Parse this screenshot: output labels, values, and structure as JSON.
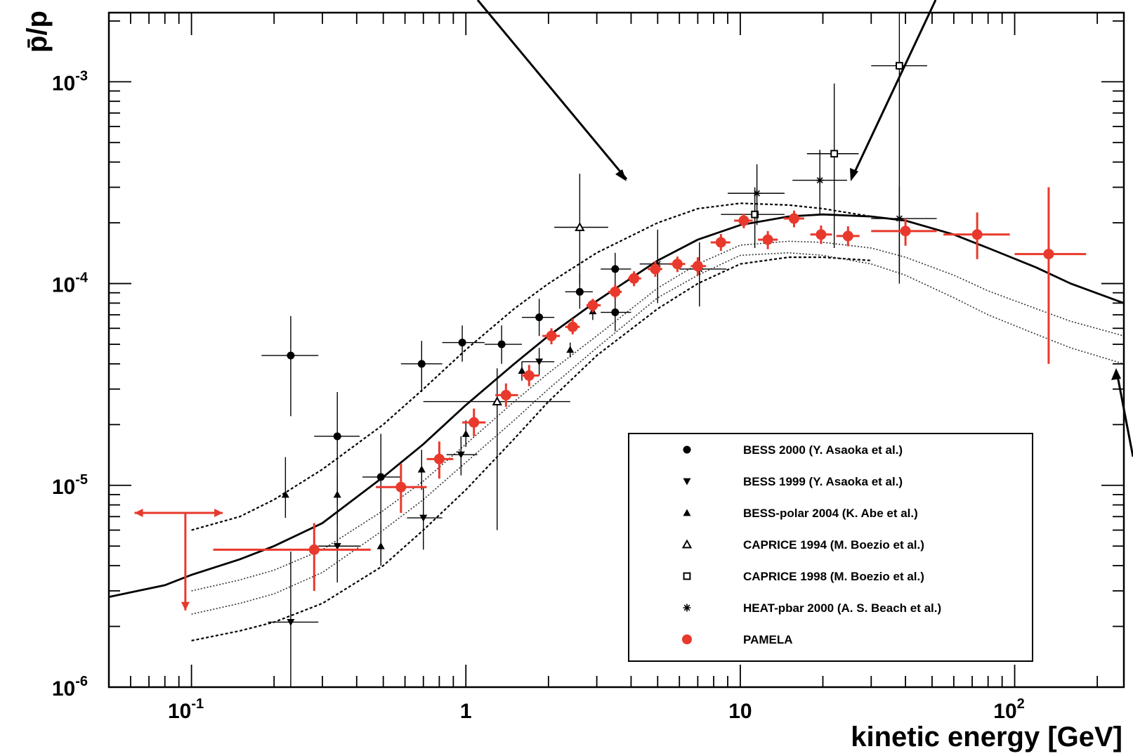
{
  "chart_data": {
    "type": "scatter",
    "xlabel": "kinetic energy [GeV]",
    "ylabel": "p̄/p",
    "xscale": "log",
    "yscale": "log",
    "xlim": [
      0.05,
      250
    ],
    "ylim": [
      1e-06,
      0.0022
    ],
    "x_tick_labels": [
      {
        "value": 0.1,
        "base": "10",
        "exp": "-1"
      },
      {
        "value": 1,
        "base": "1",
        "exp": ""
      },
      {
        "value": 10,
        "base": "10",
        "exp": ""
      },
      {
        "value": 100,
        "base": "10",
        "exp": "2"
      }
    ],
    "y_tick_labels": [
      {
        "value": 0.001,
        "base": "10",
        "exp": "-3"
      },
      {
        "value": 0.0001,
        "base": "10",
        "exp": "-4"
      },
      {
        "value": 1e-05,
        "base": "10",
        "exp": "-5"
      },
      {
        "value": 1e-06,
        "base": "10",
        "exp": "-6"
      }
    ],
    "legend_position": "bottom-right",
    "series": [
      {
        "name": "BESS 2000 (Y. Asaoka et al.)",
        "marker": "circle-filled",
        "color": "#000000",
        "points": [
          {
            "x": 0.23,
            "y": 4.4e-05,
            "xlo": 0.18,
            "xhi": 0.29,
            "ylo": 2.2e-05,
            "yhi": 6.9e-05
          },
          {
            "x": 0.34,
            "y": 1.75e-05,
            "xlo": 0.28,
            "xhi": 0.41,
            "ylo": 8e-06,
            "yhi": 2.9e-05
          },
          {
            "x": 0.49,
            "y": 1.1e-05,
            "xlo": 0.42,
            "xhi": 0.58,
            "ylo": 4.2e-06,
            "yhi": 1.8e-05
          },
          {
            "x": 0.69,
            "y": 4e-05,
            "xlo": 0.58,
            "xhi": 0.82,
            "ylo": 2.9e-05,
            "yhi": 5.2e-05
          },
          {
            "x": 0.97,
            "y": 5.1e-05,
            "xlo": 0.82,
            "xhi": 1.17,
            "ylo": 4.1e-05,
            "yhi": 6.2e-05
          },
          {
            "x": 1.35,
            "y": 5e-05,
            "xlo": 1.17,
            "xhi": 1.6,
            "ylo": 4e-05,
            "yhi": 6.2e-05
          },
          {
            "x": 1.85,
            "y": 6.8e-05,
            "xlo": 1.6,
            "xhi": 2.1,
            "ylo": 5.5e-05,
            "yhi": 8.4e-05
          },
          {
            "x": 2.6,
            "y": 9.1e-05,
            "xlo": 2.3,
            "xhi": 2.9,
            "ylo": 7.5e-05,
            "yhi": 0.000112
          },
          {
            "x": 3.5,
            "y": 0.000118,
            "xlo": 3.1,
            "xhi": 4.0,
            "ylo": 9.5e-05,
            "yhi": 0.000142
          },
          {
            "x": 3.5,
            "y": 7.2e-05,
            "xlo": 3.1,
            "xhi": 4.0,
            "ylo": 5.8e-05,
            "yhi": 8.8e-05
          }
        ]
      },
      {
        "name": "BESS 1999 (Y. Asaoka et al.)",
        "marker": "triangle-down-filled",
        "color": "#000000",
        "points": [
          {
            "x": 0.23,
            "y": 2.1e-06,
            "xlo": 0.19,
            "xhi": 0.29,
            "ylo": 1e-06,
            "yhi": 4.7e-06
          },
          {
            "x": 0.34,
            "y": 5e-06,
            "xlo": 0.29,
            "xhi": 0.41,
            "ylo": 3.3e-06,
            "yhi": 7.6e-06
          },
          {
            "x": 0.7,
            "y": 6.9e-06,
            "xlo": 0.61,
            "xhi": 0.82,
            "ylo": 4.8e-06,
            "yhi": 9.8e-06
          },
          {
            "x": 0.96,
            "y": 1.42e-05,
            "xlo": 0.85,
            "xhi": 1.1,
            "ylo": 1.12e-05,
            "yhi": 1.75e-05
          },
          {
            "x": 1.85,
            "y": 4.1e-05,
            "xlo": 1.6,
            "xhi": 2.1,
            "ylo": 3.5e-05,
            "yhi": 4.8e-05
          }
        ]
      },
      {
        "name": "BESS-polar 2004 (K. Abe et al.)",
        "marker": "triangle-up-filled",
        "color": "#000000",
        "points": [
          {
            "x": 0.22,
            "y": 9e-06,
            "ylo": 6.9e-06,
            "yhi": 1.38e-05
          },
          {
            "x": 0.34,
            "y": 9e-06,
            "ylo": 6.5e-06,
            "yhi": 1.1e-05
          },
          {
            "x": 0.49,
            "y": 5e-06,
            "ylo": 4e-06,
            "yhi": 6.5e-06
          },
          {
            "x": 0.69,
            "y": 1.2e-05,
            "ylo": 9.5e-06,
            "yhi": 1.5e-05
          },
          {
            "x": 1.0,
            "y": 1.8e-05,
            "ylo": 1.55e-05,
            "yhi": 2.1e-05
          },
          {
            "x": 1.6,
            "y": 3.7e-05,
            "ylo": 3.3e-05,
            "yhi": 4.1e-05
          },
          {
            "x": 2.4,
            "y": 4.7e-05,
            "ylo": 4.3e-05,
            "yhi": 5.1e-05
          },
          {
            "x": 2.9,
            "y": 7.3e-05,
            "ylo": 6.6e-05,
            "yhi": 8e-05
          }
        ]
      },
      {
        "name": "CAPRICE 1994 (M. Boezio et al.)",
        "marker": "triangle-up-open",
        "color": "#000000",
        "points": [
          {
            "x": 2.6,
            "y": 0.00019,
            "xlo": 2.1,
            "xhi": 3.3,
            "ylo": 0.0001,
            "yhi": 0.00035
          },
          {
            "x": 1.3,
            "y": 2.6e-05,
            "xlo": 0.7,
            "xhi": 2.4,
            "ylo": 6e-06,
            "yhi": 3.8e-05
          }
        ]
      },
      {
        "name": "CAPRICE 1998 (M. Boezio et al.)",
        "marker": "square-open",
        "color": "#000000",
        "points": [
          {
            "x": 11.3,
            "y": 0.00022,
            "xlo": 8.5,
            "xhi": 14.5,
            "ylo": 0.00015,
            "yhi": 0.0003
          },
          {
            "x": 22,
            "y": 0.00044,
            "xlo": 17.5,
            "xhi": 27,
            "ylo": 0.00015,
            "yhi": 0.00098
          },
          {
            "x": 38,
            "y": 0.0012,
            "xlo": 30,
            "xhi": 48,
            "ylo": 0.0001,
            "yhi": 0.0022
          }
        ]
      },
      {
        "name": "HEAT-pbar 2000 (A. S. Beach et al.)",
        "marker": "star",
        "color": "#000000",
        "points": [
          {
            "x": 5.0,
            "y": 0.000125,
            "xlo": 4.3,
            "xhi": 6.0,
            "ylo": 8e-05,
            "yhi": 0.000185
          },
          {
            "x": 7.1,
            "y": 0.000118,
            "xlo": 6.0,
            "xhi": 8.9,
            "ylo": 7.7e-05,
            "yhi": 0.00016
          },
          {
            "x": 11.5,
            "y": 0.00028,
            "xlo": 9.0,
            "xhi": 14.5,
            "ylo": 0.000195,
            "yhi": 0.00039
          },
          {
            "x": 19.5,
            "y": 0.000325,
            "xlo": 15.5,
            "xhi": 24.5,
            "ylo": 0.00022,
            "yhi": 0.00046
          },
          {
            "x": 38,
            "y": 0.00021,
            "xlo": 30,
            "xhi": 52,
            "ylo": 0.00011,
            "yhi": 0.0003
          }
        ]
      },
      {
        "name": "PAMELA",
        "marker": "circle-filled",
        "color": "#e8392c",
        "points": [
          {
            "x": 0.095,
            "y": 7.3e-06,
            "xlo": 0.062,
            "xhi": 0.13,
            "ylo": 2.4e-06,
            "yhi": 7.3e-06,
            "upper_limit": true
          },
          {
            "x": 0.28,
            "y": 4.8e-06,
            "xlo": 0.12,
            "xhi": 0.45,
            "ylo": 3e-06,
            "yhi": 6.5e-06
          },
          {
            "x": 0.58,
            "y": 9.8e-06,
            "xlo": 0.47,
            "xhi": 0.72,
            "ylo": 7.3e-06,
            "yhi": 1.28e-05
          },
          {
            "x": 0.8,
            "y": 1.35e-05,
            "xlo": 0.72,
            "xhi": 0.9,
            "ylo": 1.08e-05,
            "yhi": 1.65e-05
          },
          {
            "x": 1.07,
            "y": 2.05e-05,
            "xlo": 0.97,
            "xhi": 1.18,
            "ylo": 1.75e-05,
            "yhi": 2.4e-05
          },
          {
            "x": 1.4,
            "y": 2.8e-05,
            "xlo": 1.28,
            "xhi": 1.55,
            "ylo": 2.45e-05,
            "yhi": 3.2e-05
          },
          {
            "x": 1.7,
            "y": 3.5e-05,
            "xlo": 1.6,
            "xhi": 1.85,
            "ylo": 3.1e-05,
            "yhi": 3.95e-05
          },
          {
            "x": 2.05,
            "y": 5.5e-05,
            "xlo": 1.9,
            "xhi": 2.2,
            "ylo": 5e-05,
            "yhi": 6e-05
          },
          {
            "x": 2.45,
            "y": 6.1e-05,
            "xlo": 2.3,
            "xhi": 2.6,
            "ylo": 5.6e-05,
            "yhi": 6.7e-05
          },
          {
            "x": 2.9,
            "y": 7.8e-05,
            "xlo": 2.75,
            "xhi": 3.1,
            "ylo": 7.2e-05,
            "yhi": 8.4e-05
          },
          {
            "x": 3.5,
            "y": 9.1e-05,
            "xlo": 3.3,
            "xhi": 3.7,
            "ylo": 8.4e-05,
            "yhi": 9.9e-05
          },
          {
            "x": 4.1,
            "y": 0.000106,
            "xlo": 3.9,
            "xhi": 4.35,
            "ylo": 9.7e-05,
            "yhi": 0.000115
          },
          {
            "x": 4.9,
            "y": 0.000118,
            "xlo": 4.6,
            "xhi": 5.2,
            "ylo": 0.000108,
            "yhi": 0.000129
          },
          {
            "x": 5.9,
            "y": 0.000125,
            "xlo": 5.5,
            "xhi": 6.3,
            "ylo": 0.000114,
            "yhi": 0.000136
          },
          {
            "x": 7.0,
            "y": 0.000122,
            "xlo": 6.6,
            "xhi": 7.5,
            "ylo": 0.00011,
            "yhi": 0.000135
          },
          {
            "x": 8.5,
            "y": 0.00016,
            "xlo": 7.8,
            "xhi": 9.2,
            "ylo": 0.000145,
            "yhi": 0.000176
          },
          {
            "x": 10.3,
            "y": 0.000205,
            "xlo": 9.5,
            "xhi": 11.1,
            "ylo": 0.000188,
            "yhi": 0.000222
          },
          {
            "x": 12.6,
            "y": 0.000165,
            "xlo": 11.6,
            "xhi": 13.7,
            "ylo": 0.000148,
            "yhi": 0.000182
          },
          {
            "x": 15.7,
            "y": 0.00021,
            "xlo": 14.4,
            "xhi": 17.1,
            "ylo": 0.00019,
            "yhi": 0.00023
          },
          {
            "x": 19.7,
            "y": 0.000175,
            "xlo": 18,
            "xhi": 21.6,
            "ylo": 0.000157,
            "yhi": 0.000194
          },
          {
            "x": 24.7,
            "y": 0.000172,
            "xlo": 22.4,
            "xhi": 27.2,
            "ylo": 0.000153,
            "yhi": 0.000192
          },
          {
            "x": 40,
            "y": 0.000182,
            "xlo": 30,
            "xhi": 52,
            "ylo": 0.000154,
            "yhi": 0.00021
          },
          {
            "x": 73,
            "y": 0.000175,
            "xlo": 55,
            "xhi": 96,
            "ylo": 0.000132,
            "yhi": 0.000225
          },
          {
            "x": 133,
            "y": 0.00014,
            "xlo": 100,
            "xhi": 182,
            "ylo": 4e-05,
            "yhi": 0.0003
          }
        ]
      }
    ],
    "curves": [
      {
        "style": "solid",
        "x": [
          0.05,
          0.08,
          0.1,
          0.15,
          0.2,
          0.3,
          0.5,
          0.7,
          1,
          1.5,
          2,
          3,
          5,
          7,
          10,
          15,
          20,
          30,
          40,
          60,
          80,
          120,
          160,
          250
        ],
        "y": [
          2.8e-06,
          3.2e-06,
          3.6e-06,
          4.3e-06,
          5e-06,
          6.5e-06,
          1.1e-05,
          1.6e-05,
          2.5e-05,
          4e-05,
          5.5e-05,
          8.2e-05,
          0.00013,
          0.000165,
          0.000195,
          0.000215,
          0.00022,
          0.000215,
          0.000205,
          0.000175,
          0.00015,
          0.00012,
          0.0001,
          8e-05
        ]
      },
      {
        "style": "dashed",
        "x": [
          0.1,
          0.15,
          0.2,
          0.3,
          0.5,
          0.7,
          1,
          1.5,
          2,
          3,
          5,
          7,
          10,
          15,
          20,
          30
        ],
        "y": [
          6e-06,
          7e-06,
          8.5e-06,
          1.2e-05,
          2e-05,
          3e-05,
          4.7e-05,
          7.5e-05,
          0.0001,
          0.000142,
          0.0002,
          0.000235,
          0.00025,
          0.000245,
          0.000235,
          0.000215
        ]
      },
      {
        "style": "dashed",
        "x": [
          0.1,
          0.15,
          0.2,
          0.3,
          0.5,
          0.7,
          1,
          1.5,
          2,
          3,
          5,
          7,
          10,
          15,
          20,
          30
        ],
        "y": [
          1.7e-06,
          1.9e-06,
          2.1e-06,
          2.6e-06,
          4e-06,
          6e-06,
          9.5e-06,
          1.7e-05,
          2.6e-05,
          4.4e-05,
          7.5e-05,
          0.0001,
          0.000125,
          0.000135,
          0.000135,
          0.00013
        ]
      },
      {
        "style": "dotted",
        "x": [
          0.1,
          0.15,
          0.2,
          0.3,
          0.5,
          0.7,
          1,
          1.5,
          2,
          3,
          5,
          7,
          10,
          15,
          20,
          30,
          40,
          60,
          80,
          120,
          160,
          250
        ],
        "y": [
          3e-06,
          3.4e-06,
          3.8e-06,
          4.8e-06,
          7.5e-06,
          1.05e-05,
          1.6e-05,
          2.6e-05,
          3.6e-05,
          5.5e-05,
          9.5e-05,
          0.000125,
          0.000155,
          0.000162,
          0.00016,
          0.00015,
          0.000135,
          0.00011,
          9.2e-05,
          7.5e-05,
          6.5e-05,
          5.5e-05
        ]
      },
      {
        "style": "dotted",
        "x": [
          0.1,
          0.15,
          0.2,
          0.3,
          0.5,
          0.7,
          1,
          1.5,
          2,
          3,
          5,
          7,
          10,
          15,
          20,
          30,
          40,
          60,
          80,
          120,
          160,
          250
        ],
        "y": [
          2.3e-06,
          2.6e-06,
          2.9e-06,
          3.7e-06,
          6e-06,
          8.5e-06,
          1.3e-05,
          2.1e-05,
          3e-05,
          4.8e-05,
          8.5e-05,
          0.00011,
          0.000138,
          0.000142,
          0.000138,
          0.000125,
          0.00011,
          8.5e-05,
          7e-05,
          5.6e-05,
          4.8e-05,
          4e-05
        ]
      }
    ]
  }
}
